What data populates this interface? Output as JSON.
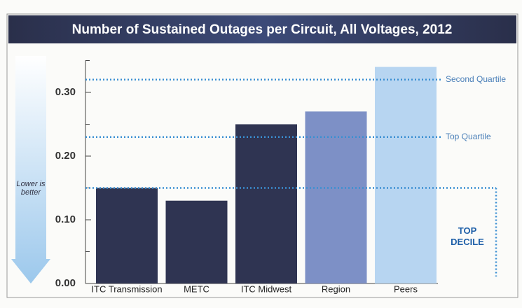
{
  "chart_data": {
    "type": "bar",
    "title": "Number of Sustained Outages per Circuit, All Voltages, 2012",
    "categories": [
      "ITC Transmission",
      "METC",
      "ITC Midwest",
      "Region",
      "Peers"
    ],
    "values": [
      0.15,
      0.13,
      0.25,
      0.27,
      0.34
    ],
    "colors": [
      "#2f3452",
      "#2f3452",
      "#2f3452",
      "#7d90c6",
      "#b7d5f1"
    ],
    "ylim": [
      0,
      0.35
    ],
    "yticks": [
      {
        "value": 0,
        "label": "0.00"
      },
      {
        "value": 0.1,
        "label": "0.10"
      },
      {
        "value": 0.2,
        "label": "0.20"
      },
      {
        "value": 0.3,
        "label": "0.30"
      }
    ],
    "minor_yticks": [
      0.05,
      0.15,
      0.25,
      0.35
    ],
    "reference_lines": [
      {
        "name": "Second Quartile",
        "value": 0.32
      },
      {
        "name": "Top Quartile",
        "value": 0.23
      },
      {
        "name": "TOP DECILE",
        "value": 0.15
      }
    ],
    "reference_color": "#3b8fd2",
    "annotation": "Lower is better"
  }
}
